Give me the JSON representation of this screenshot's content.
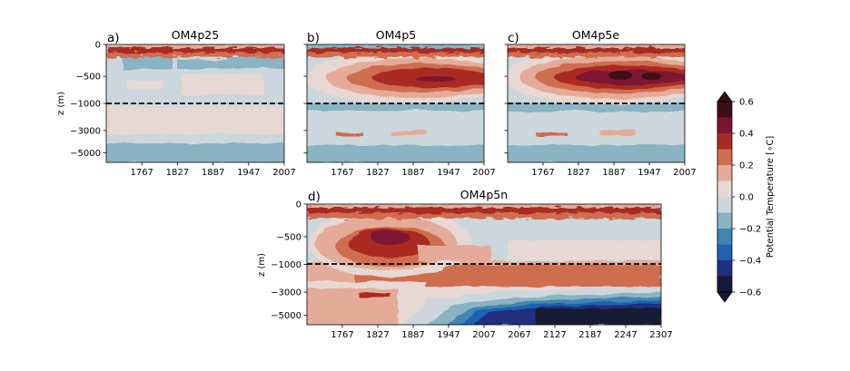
{
  "chart_data": [
    {
      "type": "heatmap",
      "letter": "a)",
      "title": "OM4p25",
      "ylabel": "z (m)",
      "xlim": [
        1707,
        2007
      ],
      "x_ticks": [
        "1767",
        "1827",
        "1887",
        "1947",
        "2007"
      ],
      "y_ticks": [
        "0",
        "−500",
        "−1000",
        "−3000",
        "−5000"
      ],
      "reference_depth": -1000,
      "regions": [
        {
          "depth_range": [
            "0",
            "-200"
          ],
          "anomaly": 0.3,
          "note": "noisy"
        },
        {
          "depth_range": [
            "-200",
            "-500"
          ],
          "anomaly": -0.1
        },
        {
          "depth_range": [
            "-500",
            "-1000"
          ],
          "anomaly": 0.0
        },
        {
          "depth_range": [
            "-1000",
            "-3000"
          ],
          "anomaly": 0.05
        },
        {
          "depth_range": [
            "-3000",
            "-5000"
          ],
          "anomaly": -0.12
        }
      ]
    },
    {
      "type": "heatmap",
      "letter": "b)",
      "title": "OM4p5",
      "xlim": [
        1707,
        2007
      ],
      "x_ticks": [
        "1767",
        "1827",
        "1887",
        "1947",
        "2007"
      ],
      "reference_depth": -1000,
      "regions": [
        {
          "depth_range": [
            "0",
            "-200"
          ],
          "anomaly": 0.2,
          "note": "noisy"
        },
        {
          "depth_range": [
            "-200",
            "-1000"
          ],
          "anomaly": 0.35,
          "peak": 0.5
        },
        {
          "depth_range": [
            "-1000",
            "-3000"
          ],
          "anomaly": -0.05
        },
        {
          "depth_range": [
            "-3000",
            "-5000"
          ],
          "anomaly": -0.12
        }
      ]
    },
    {
      "type": "heatmap",
      "letter": "c)",
      "title": "OM4p5e",
      "xlim": [
        1707,
        2007
      ],
      "x_ticks": [
        "1767",
        "1827",
        "1887",
        "1947",
        "2007"
      ],
      "reference_depth": -1000,
      "regions": [
        {
          "depth_range": [
            "0",
            "-200"
          ],
          "anomaly": 0.25,
          "note": "noisy"
        },
        {
          "depth_range": [
            "-200",
            "-1000"
          ],
          "anomaly": 0.4,
          "peak": 0.6
        },
        {
          "depth_range": [
            "-1000",
            "-3000"
          ],
          "anomaly": -0.05
        },
        {
          "depth_range": [
            "-3000",
            "-5000"
          ],
          "anomaly": -0.12
        }
      ]
    },
    {
      "type": "heatmap",
      "letter": "d)",
      "title": "OM4p5n",
      "ylabel": "z (m)",
      "xlim": [
        1707,
        2307
      ],
      "x_ticks": [
        "1767",
        "1827",
        "1887",
        "1947",
        "2007",
        "2067",
        "2127",
        "2187",
        "2247",
        "2307"
      ],
      "y_ticks": [
        "0",
        "−500",
        "−1000",
        "−3000",
        "−5000"
      ],
      "reference_depth": -1000,
      "regions": [
        {
          "depth_range": [
            "0",
            "-200"
          ],
          "anomaly": 0.25,
          "note": "noisy"
        },
        {
          "depth_range": [
            "-200",
            "-1000"
          ],
          "anomaly": 0.3,
          "peak": 0.55
        },
        {
          "depth_range": [
            "-1000",
            "-3000"
          ],
          "anomaly": 0.25
        },
        {
          "depth_range": [
            "-3000",
            "-5000"
          ],
          "anomaly": -0.45
        }
      ]
    }
  ],
  "colorbar": {
    "label": "Potential Temperature [∘C]",
    "tick_labels": [
      "0.6",
      "0.4",
      "0.2",
      "0.0",
      "−0.2",
      "−0.4",
      "−0.6"
    ],
    "levels": [
      -0.6,
      -0.5,
      -0.4,
      -0.3,
      -0.2,
      -0.1,
      0.0,
      0.1,
      0.2,
      0.3,
      0.4,
      0.5,
      0.6
    ],
    "colors": [
      "#161a36",
      "#222f80",
      "#1f62b0",
      "#3f86b0",
      "#8ab3c4",
      "#cbd7dc",
      "#e8d8d3",
      "#e4ac98",
      "#cf6d50",
      "#aa2b24",
      "#7c1530",
      "#3d0e16"
    ],
    "extend": "both"
  }
}
